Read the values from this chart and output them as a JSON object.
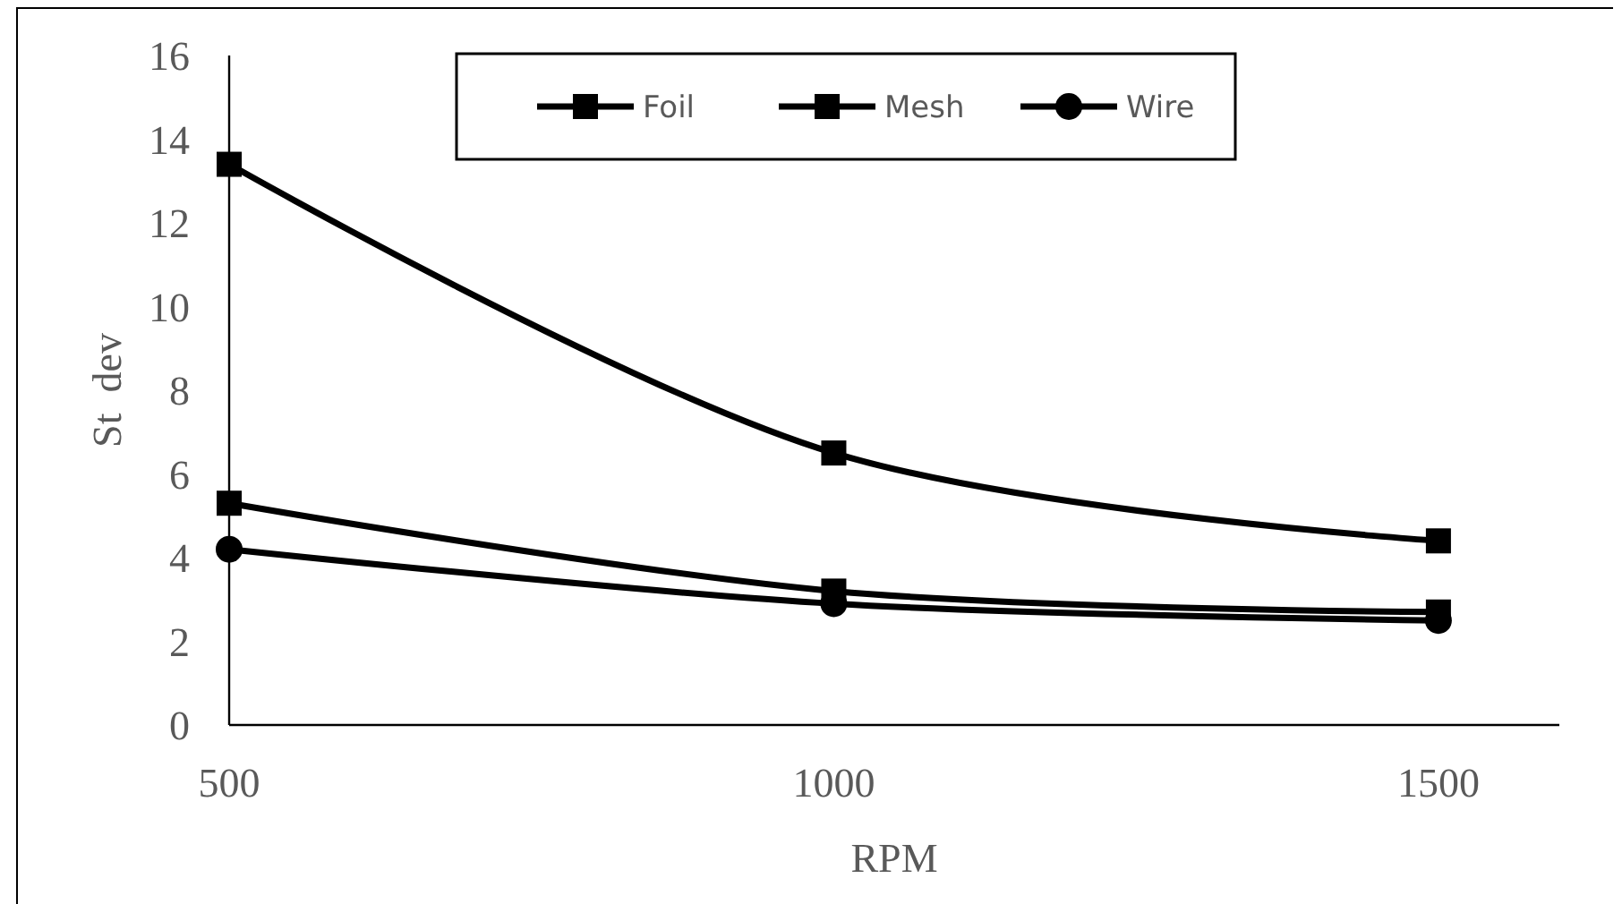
{
  "chart_data": {
    "type": "line",
    "xlabel": "RPM",
    "ylabel": "St  dev",
    "x": [
      500,
      1000,
      1500
    ],
    "series": [
      {
        "name": "Foil",
        "color": "#000000",
        "marker": "square",
        "values": [
          13.4,
          6.5,
          4.4
        ]
      },
      {
        "name": "Mesh",
        "color": "#000000",
        "marker": "square",
        "values": [
          5.3,
          3.2,
          2.7
        ]
      },
      {
        "name": "Wire",
        "color": "#000000",
        "marker": "circle",
        "values": [
          4.2,
          2.9,
          2.5
        ]
      }
    ],
    "xlim": [
      500,
      1600
    ],
    "xticks": [
      500,
      1000,
      1500
    ],
    "ylim": [
      0,
      16
    ],
    "yticks": [
      0,
      2,
      4,
      6,
      8,
      10,
      12,
      14,
      16
    ],
    "grid": false,
    "legend": "top"
  }
}
